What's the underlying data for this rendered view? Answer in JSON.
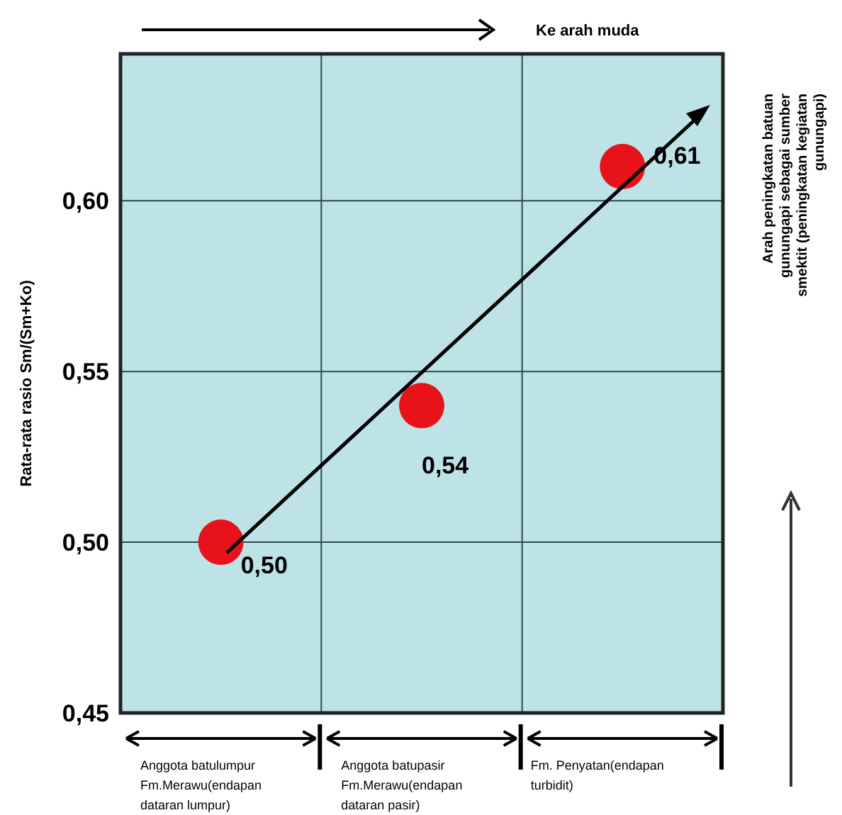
{
  "chart_data": {
    "type": "scatter",
    "ylabel": "Rata-rata rasio Sm/(Sm+Ko)",
    "categories": [
      "Anggota batulumpur\nFm.Merawu(endapan\ndataran lumpur)",
      "Anggota batupasir\nFm.Merawu(endapan\ndataran pasir)",
      "Fm. Penyatan(endapan\nturbidit)"
    ],
    "series": [
      {
        "color": "#e8121b",
        "values": [
          0.5,
          0.54,
          0.61
        ],
        "value_labels": [
          "0,50",
          "0,54",
          "0,61"
        ]
      }
    ],
    "ylim": [
      0.45,
      0.643
    ],
    "yticks": [
      {
        "value": 0.45,
        "label": "0,45"
      },
      {
        "value": 0.5,
        "label": "0,50"
      },
      {
        "value": 0.55,
        "label": "0,55"
      },
      {
        "value": 0.6,
        "label": "0,60"
      }
    ],
    "grid": true,
    "annotations": [
      "Ke arah muda",
      "Arah peningkatan batuan\ngunungapi sebagai sumber\nsmektit (peningkatan kegiatan\ngunungapi)"
    ]
  }
}
